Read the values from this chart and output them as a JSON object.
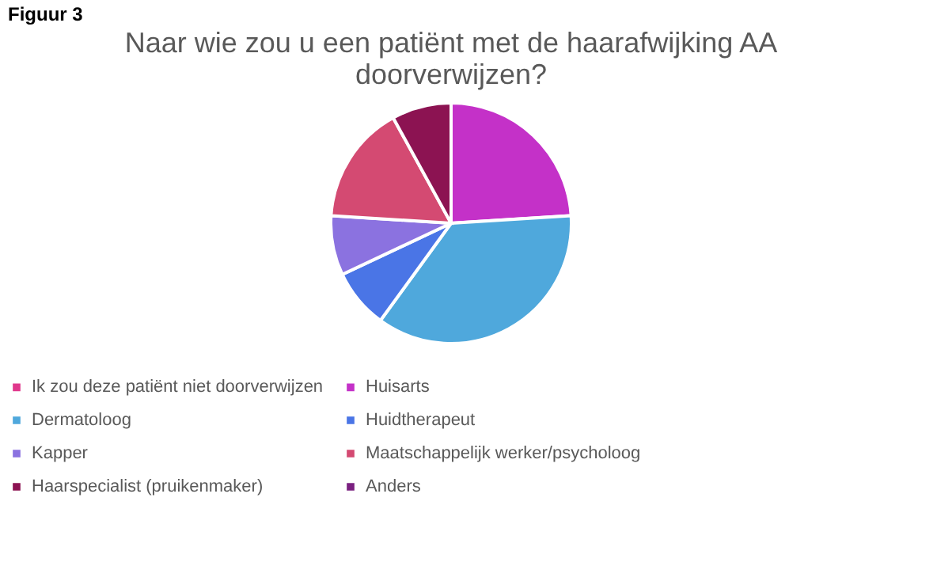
{
  "chart_data": {
    "type": "pie",
    "title": [
      "Naar wie zou u een patiënt met de haarafwijking AA",
      "doorverwijzen?"
    ],
    "annotations": [
      "Figuur 3"
    ],
    "categories": [
      "Ik zou deze patiënt niet doorverwijzen",
      "Huisarts",
      "Dermatoloog",
      "Huidtherapeut",
      "Kapper",
      "Maatschappelijk werker/psycholoog",
      "Haarspecialist (pruikenmaker)",
      "Anders"
    ],
    "values": [
      0,
      24,
      36,
      8,
      8,
      16,
      8,
      0
    ],
    "colors": [
      "#e0388c",
      "#c431c8",
      "#4fa8dc",
      "#4a75e6",
      "#8b72e0",
      "#d44a72",
      "#8c1352",
      "#7a2080"
    ],
    "legend": "bottom"
  }
}
